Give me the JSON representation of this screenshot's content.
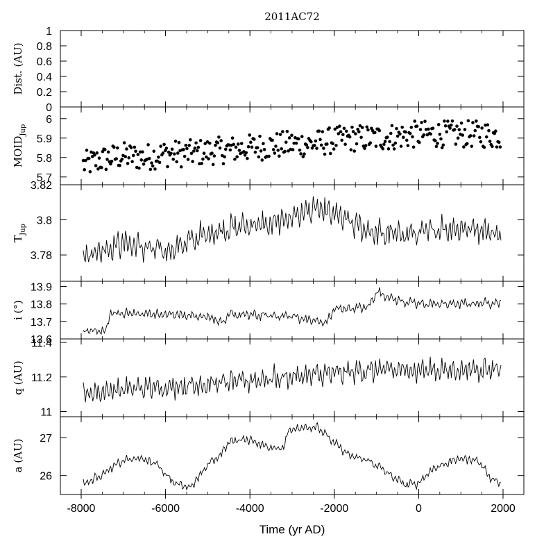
{
  "title": "2011AC72",
  "xlabel": "Time (yr AD)",
  "xlim": [
    -8000,
    2000
  ],
  "xticks": [
    "-8000",
    "-6000",
    "-4000",
    "-2000",
    "0",
    "2000"
  ],
  "xtick_values": [
    -8000,
    -6000,
    -4000,
    -2000,
    0,
    2000
  ],
  "chart_data": [
    {
      "type": "line",
      "ylabel": "Dist. (AU)",
      "ylim": [
        0,
        1
      ],
      "yticks": [
        "0",
        "0.2",
        "0.4",
        "0.6",
        "0.8",
        "1"
      ],
      "ytick_values": [
        0,
        0.2,
        0.4,
        0.6,
        0.8,
        1
      ],
      "series": []
    },
    {
      "type": "scatter",
      "ylabel": "MOID",
      "ylabel_sub": "Jup",
      "ylim": [
        5.66,
        6.06
      ],
      "yticks": [
        "5.7",
        "5.8",
        "5.9",
        "6"
      ],
      "ytick_values": [
        5.7,
        5.8,
        5.9,
        6.0
      ],
      "x": [
        -8000,
        -7500,
        -7000,
        -6500,
        -6000,
        -5500,
        -5000,
        -4500,
        -4000,
        -3500,
        -3000,
        -2500,
        -2000,
        -1500,
        -1000,
        -500,
        0,
        500,
        1000,
        1500,
        2000
      ],
      "y": [
        5.76,
        5.79,
        5.81,
        5.8,
        5.82,
        5.82,
        5.83,
        5.84,
        5.85,
        5.86,
        5.87,
        5.87,
        5.89,
        5.9,
        5.9,
        5.91,
        5.92,
        5.92,
        5.92,
        5.92,
        5.91
      ],
      "spread": 0.07
    },
    {
      "type": "line",
      "ylabel": "T",
      "ylabel_sub": "Jup",
      "ylim": [
        3.765,
        3.82
      ],
      "yticks": [
        "3.78",
        "3.8",
        "3.82"
      ],
      "ytick_values": [
        3.78,
        3.8,
        3.82
      ],
      "x": [
        -8000,
        -7500,
        -7000,
        -6500,
        -6000,
        -5500,
        -5000,
        -4500,
        -4000,
        -3500,
        -3000,
        -2500,
        -2000,
        -1500,
        -1000,
        -500,
        0,
        500,
        1000,
        1500,
        2000
      ],
      "y": [
        3.779,
        3.783,
        3.787,
        3.784,
        3.782,
        3.787,
        3.792,
        3.795,
        3.797,
        3.797,
        3.802,
        3.806,
        3.803,
        3.797,
        3.792,
        3.792,
        3.792,
        3.795,
        3.795,
        3.795,
        3.79
      ],
      "amplitude": 0.008
    },
    {
      "type": "line",
      "ylabel": "i (°)",
      "ylim": [
        13.6,
        13.93
      ],
      "yticks": [
        "13.6",
        "13.7",
        "13.8",
        "13.9"
      ],
      "ytick_values": [
        13.6,
        13.7,
        13.8,
        13.9
      ],
      "x": [
        -8000,
        -7600,
        -7400,
        -7300,
        -6000,
        -5000,
        -4600,
        -4500,
        -3000,
        -2200,
        -2000,
        -1200,
        -1000,
        -500,
        0,
        1000,
        2000
      ],
      "y": [
        13.64,
        13.65,
        13.66,
        13.75,
        13.74,
        13.73,
        13.69,
        13.74,
        13.73,
        13.69,
        13.77,
        13.78,
        13.87,
        13.82,
        13.8,
        13.8,
        13.81
      ],
      "amplitude": 0.03
    },
    {
      "type": "line",
      "ylabel": "q (AU)",
      "ylim": [
        10.97,
        11.42
      ],
      "yticks": [
        "11",
        "11.2",
        "11.4"
      ],
      "ytick_values": [
        11.0,
        11.2,
        11.4
      ],
      "x": [
        -8000,
        -7000,
        -6000,
        -5000,
        -4000,
        -3000,
        -2000,
        -1000,
        0,
        1000,
        2000
      ],
      "y": [
        11.1,
        11.13,
        11.14,
        11.16,
        11.18,
        11.2,
        11.22,
        11.24,
        11.24,
        11.24,
        11.25
      ],
      "amplitude": 0.07
    },
    {
      "type": "line",
      "ylabel": "a (AU)",
      "ylim": [
        25.5,
        27.55
      ],
      "yticks": [
        "26",
        "27"
      ],
      "ytick_values": [
        26,
        27
      ],
      "x": [
        -8000,
        -7800,
        -7400,
        -7000,
        -6600,
        -6200,
        -5800,
        -5400,
        -5000,
        -4700,
        -4500,
        -4000,
        -3600,
        -3200,
        -3100,
        -2800,
        -2400,
        -2000,
        -1600,
        -1200,
        -900,
        -600,
        -300,
        0,
        300,
        700,
        1000,
        1400,
        1700,
        2000
      ],
      "y": [
        25.75,
        25.85,
        26.1,
        26.4,
        26.45,
        26.3,
        25.8,
        25.7,
        26.3,
        26.5,
        26.9,
        26.95,
        26.75,
        26.7,
        27.2,
        27.25,
        27.3,
        26.85,
        26.5,
        26.4,
        26.2,
        25.95,
        25.75,
        25.8,
        26.15,
        26.35,
        26.45,
        26.4,
        25.95,
        25.75
      ],
      "amplitude": 0.12
    }
  ]
}
